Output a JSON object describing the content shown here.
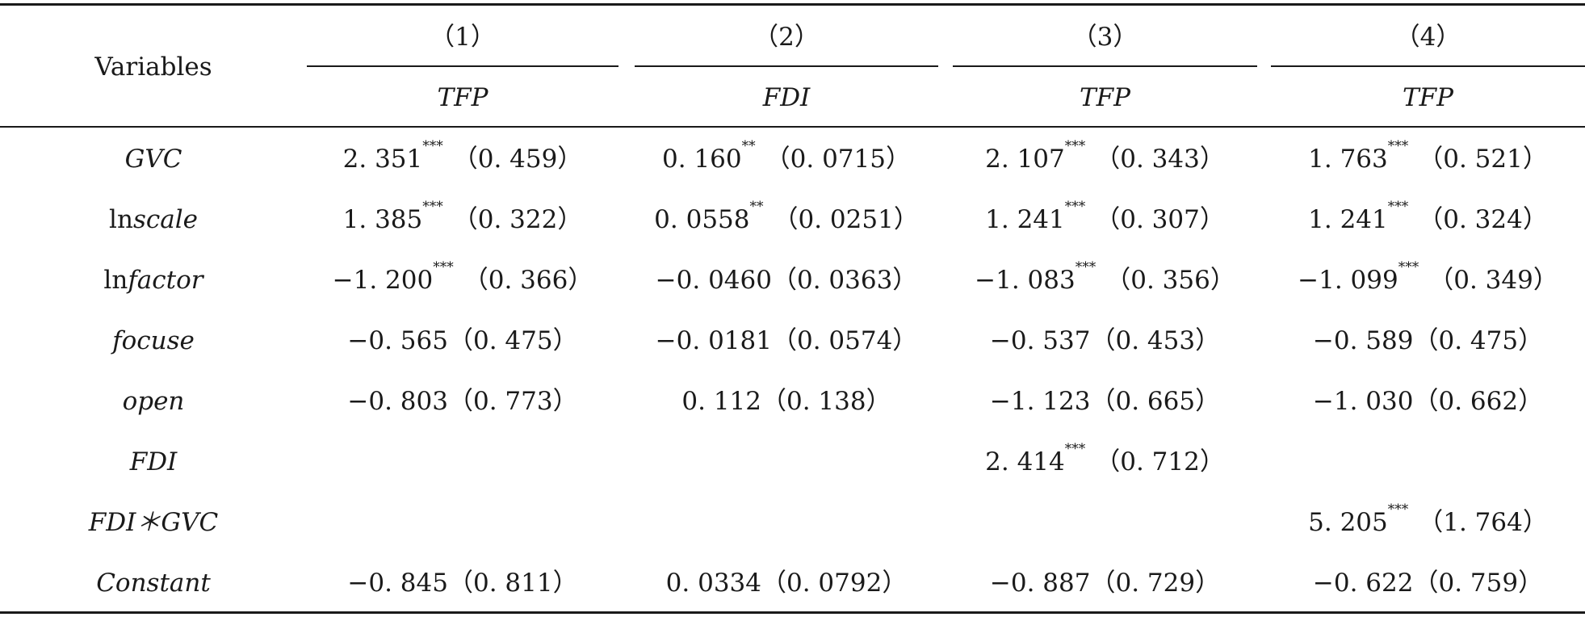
{
  "header": {
    "variables_label": "Variables",
    "col_numbers": [
      "（1）",
      "（2）",
      "（3）",
      "（4）"
    ],
    "dep_vars": [
      "TFP",
      "FDI",
      "TFP",
      "TFP"
    ]
  },
  "rows": [
    {
      "label": "GVC",
      "cells": [
        {
          "coef": "2. 351",
          "stars": "***",
          "se": "（0. 459）"
        },
        {
          "coef": "0. 160",
          "stars": "**",
          "se": "（0. 0715）"
        },
        {
          "coef": "2. 107",
          "stars": "***",
          "se": "（0. 343）"
        },
        {
          "coef": "1. 763",
          "stars": "***",
          "se": "（0. 521）"
        }
      ]
    },
    {
      "label_prefix": "ln",
      "label_italic": "scale",
      "cells": [
        {
          "coef": "1. 385",
          "stars": "***",
          "se": "（0. 322）"
        },
        {
          "coef": "0. 0558",
          "stars": "**",
          "se": "（0. 0251）"
        },
        {
          "coef": "1. 241",
          "stars": "***",
          "se": "（0. 307）"
        },
        {
          "coef": "1. 241",
          "stars": "***",
          "se": "（0. 324）"
        }
      ]
    },
    {
      "label_prefix": "ln",
      "label_italic": "factor",
      "cells": [
        {
          "coef": "−1. 200",
          "stars": "***",
          "se": "（0. 366）"
        },
        {
          "coef": "−0. 0460",
          "stars": "",
          "se": "（0. 0363）"
        },
        {
          "coef": "−1. 083",
          "stars": "***",
          "se": "（0. 356）"
        },
        {
          "coef": "−1. 099",
          "stars": "***",
          "se": "（0. 349）"
        }
      ]
    },
    {
      "label": "focuse",
      "cells": [
        {
          "coef": "−0. 565",
          "stars": "",
          "se": "（0. 475）"
        },
        {
          "coef": "−0. 0181",
          "stars": "",
          "se": "（0. 0574）"
        },
        {
          "coef": "−0. 537",
          "stars": "",
          "se": "（0. 453）"
        },
        {
          "coef": "−0. 589",
          "stars": "",
          "se": "（0. 475）"
        }
      ]
    },
    {
      "label": "open",
      "cells": [
        {
          "coef": "−0. 803",
          "stars": "",
          "se": "（0. 773）"
        },
        {
          "coef": "0. 112",
          "stars": "",
          "se": "（0. 138）"
        },
        {
          "coef": "−1. 123",
          "stars": "",
          "se": "（0. 665）"
        },
        {
          "coef": "−1. 030",
          "stars": "",
          "se": "（0. 662）"
        }
      ]
    },
    {
      "label": "FDI",
      "cells": [
        {
          "coef": "",
          "stars": "",
          "se": ""
        },
        {
          "coef": "",
          "stars": "",
          "se": ""
        },
        {
          "coef": "2. 414",
          "stars": "***",
          "se": "（0. 712）"
        },
        {
          "coef": "",
          "stars": "",
          "se": ""
        }
      ]
    },
    {
      "label": "FDI＊GVC",
      "cells": [
        {
          "coef": "",
          "stars": "",
          "se": ""
        },
        {
          "coef": "",
          "stars": "",
          "se": ""
        },
        {
          "coef": "",
          "stars": "",
          "se": ""
        },
        {
          "coef": "5. 205",
          "stars": "***",
          "se": "（1. 764）"
        }
      ]
    },
    {
      "label": "Constant",
      "cells": [
        {
          "coef": "−0. 845",
          "stars": "",
          "se": "（0. 811）"
        },
        {
          "coef": "0. 0334",
          "stars": "",
          "se": "（0. 0792）"
        },
        {
          "coef": "−0. 887",
          "stars": "",
          "se": "（0. 729）"
        },
        {
          "coef": "−0. 622",
          "stars": "",
          "se": "（0. 759）"
        }
      ]
    }
  ]
}
